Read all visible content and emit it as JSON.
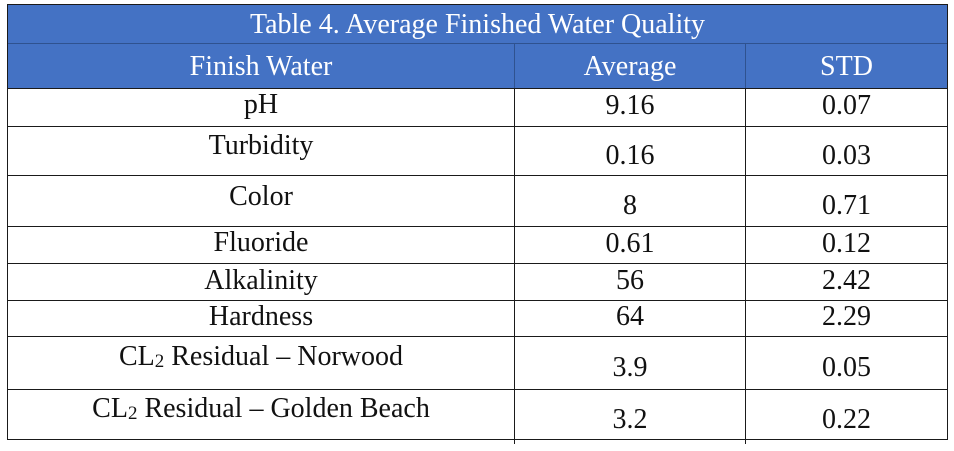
{
  "table": {
    "caption": "Table 4. Average Finished Water Quality",
    "headers": [
      "Finish Water",
      "Average",
      "STD"
    ],
    "rows": [
      {
        "param": "pH",
        "average": "9.16",
        "std": "0.07"
      },
      {
        "param": "Turbidity",
        "average": "0.16",
        "std": "0.03"
      },
      {
        "param": "Color",
        "average": "8",
        "std": "0.71"
      },
      {
        "param": "Fluoride",
        "average": "0.61",
        "std": "0.12"
      },
      {
        "param": "Alkalinity",
        "average": "56",
        "std": "2.42"
      },
      {
        "param": "Hardness",
        "average": "64",
        "std": "2.29"
      },
      {
        "param_prefix": "CL",
        "param_sub": "2",
        "param_suffix": " Residual – Norwood",
        "average": "3.9",
        "std": "0.05"
      },
      {
        "param_prefix": "CL",
        "param_sub": "2",
        "param_suffix": " Residual – Golden Beach",
        "average": "3.2",
        "std": "0.22"
      }
    ]
  },
  "colors": {
    "header_bg": "#4472c4",
    "header_text": "#ffffff",
    "border": "#1a1a1a"
  }
}
